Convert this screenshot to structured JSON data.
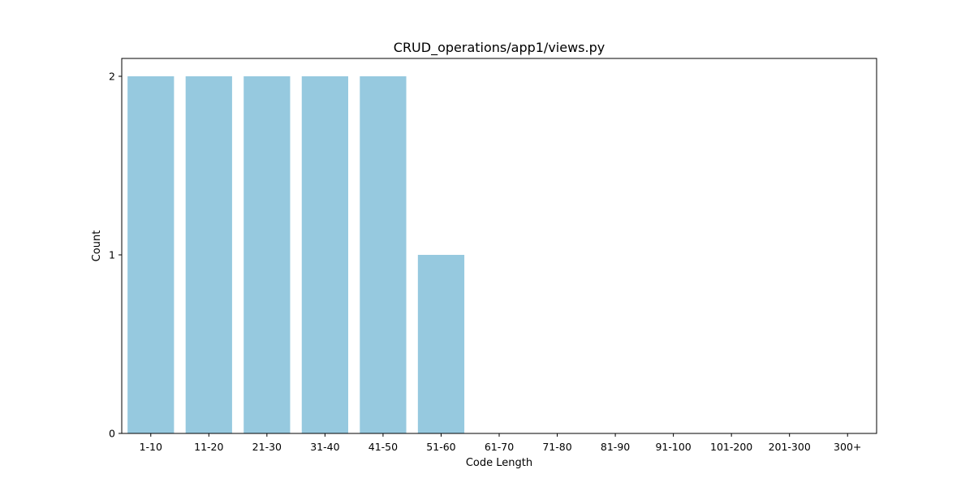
{
  "chart_data": {
    "type": "bar",
    "title": "CRUD_operations/app1/views.py",
    "xlabel": "Code Length",
    "ylabel": "Count",
    "categories": [
      "1-10",
      "11-20",
      "21-30",
      "31-40",
      "41-50",
      "51-60",
      "61-70",
      "71-80",
      "81-90",
      "91-100",
      "101-200",
      "201-300",
      "300+"
    ],
    "values": [
      2,
      2,
      2,
      2,
      2,
      1,
      0,
      0,
      0,
      0,
      0,
      0,
      0
    ],
    "yticks": [
      0,
      1,
      2
    ],
    "ylim": [
      0,
      2.1
    ],
    "grid": false,
    "legend": "none",
    "bar_color": "#96c9df"
  }
}
